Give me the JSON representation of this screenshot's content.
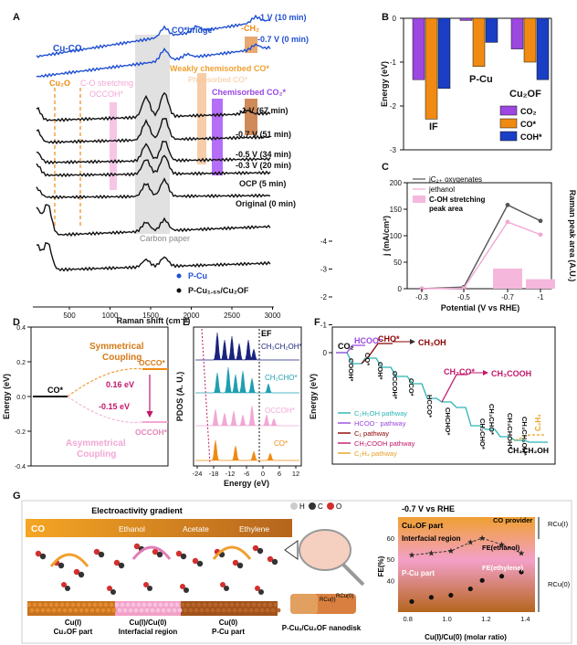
{
  "colors": {
    "blue": "#1f4fd1",
    "black": "#111111",
    "orange": "#f08a12",
    "pink": "#f2a7d4",
    "purple": "#9b47e0",
    "navy": "#1a237e",
    "teal": "#1f9fb0",
    "gray": "#bdbdbd",
    "brown": "#c27a3a",
    "gold": "#e8a020",
    "magenta": "#c2186b"
  },
  "panelA": {
    "letter": "A",
    "xlabel": "Raman shift (cm⁻¹)",
    "xticks": [
      "500",
      "1000",
      "1500",
      "2000",
      "2500",
      "3000"
    ],
    "annotations": {
      "cuco": "Cu-CO",
      "cobridge": "CO*bridge",
      "ch": "-CH₂",
      "cu2o": "Cu₂O",
      "costretch": "C-O stretching",
      "occoh": "OCCOH*",
      "weak": "Weakly chemisorbed CO*",
      "physi": "Physisorbed CO*",
      "chemi": "Chemisorbed CO₂*",
      "carbon": "Carbon paper"
    },
    "spectra_labels": [
      "-1 V (10 min)",
      "-0.7 V (0 min)",
      "-1 V (67 min)",
      "-0.7 V (51 min)",
      "-0.5 V (34 min)",
      "-0.3 V (20 min)",
      "OCP (5 min)",
      "Original (0 min)"
    ],
    "legend": [
      "P-Cu",
      "P-Cu₁.₆₅/Cu₂OF"
    ]
  },
  "panelB": {
    "letter": "B",
    "chart_data": {
      "type": "bar",
      "categories": [
        "IF",
        "P-Cu",
        "Cu₂OF"
      ],
      "ylabel": "Energy (eV)",
      "ylim": [
        -3,
        0
      ],
      "yticks": [
        "0",
        "-1",
        "-2",
        "-3"
      ],
      "series": [
        {
          "name": "CO₂",
          "values": [
            -1.4,
            -0.05,
            -0.7
          ]
        },
        {
          "name": "CO*",
          "values": [
            -2.3,
            -1.1,
            -1.0
          ]
        },
        {
          "name": "COH*",
          "values": [
            -1.6,
            -0.55,
            -1.4
          ]
        }
      ]
    }
  },
  "panelC": {
    "letter": "C",
    "chart_data": {
      "type": "line",
      "x": [
        "-0.3",
        "-0.5",
        "-0.7",
        "-1"
      ],
      "xlabel": "Potential (V vs RHE)",
      "ylabel": "j (mA/cm²)",
      "y2label": "Raman peak area (A.U.)",
      "ylim": [
        0,
        200
      ],
      "yticks": [
        "0",
        "50",
        "100",
        "150",
        "200"
      ],
      "series": [
        {
          "name": "jC2+ oxygenates",
          "values": [
            0,
            3,
            158,
            128
          ]
        },
        {
          "name": "jethanol",
          "values": [
            0,
            1,
            126,
            102
          ]
        },
        {
          "name": "C-OH stretching peak area",
          "values": [
            0,
            0,
            38,
            18
          ]
        }
      ],
      "legend": [
        "jC₂₊ oxygenates",
        "jethanol",
        "C-OH stretching",
        "peak area"
      ]
    }
  },
  "panelD": {
    "letter": "D",
    "ylabel": "Energy (eV)",
    "yticks": [
      "0.4",
      "0.2",
      "0.0",
      "-0.2",
      "-0.4"
    ],
    "labels": {
      "co": "CO*",
      "sym": "Symmetrical",
      "coupling": "Coupling",
      "occo": "OCCO*",
      "e1": "0.16 eV",
      "e2": "-0.15 eV",
      "occoh": "OCCOH*",
      "asym": "Asymmetrical",
      "coupling2": "Coupling"
    }
  },
  "panelE": {
    "letter": "E",
    "ylabel": "PDOS (A. U.)",
    "xlabel": "Energy (eV)",
    "xticks": [
      "-24",
      "-18",
      "-12",
      "-6",
      "0",
      "6",
      "12"
    ],
    "ef": "EF",
    "labels": [
      "CH₃CH₂OH*",
      "CH₂CHO*",
      "OCCOH*",
      "CO*"
    ]
  },
  "panelF": {
    "letter": "F",
    "ylabel": "Energy (eV)",
    "yticks": [
      "0",
      "-1",
      "-2",
      "-3",
      "-4"
    ],
    "labels": {
      "co2": "CO₂",
      "hcoo": "HCOO⁻",
      "cho": "CHO*",
      "ch3oh": "CH₃OH",
      "ch2co": "CH₂CO*",
      "ch3cooh": "CH₃COOH",
      "ch3ch2oh": "CH₃CH₂OH",
      "c2h4": "C₂H₄",
      "vert": [
        "COOH*",
        "CO*",
        "COH*",
        "OCCOH*",
        "CCO*",
        "HCCO*",
        "CHCHO*",
        "CH₂CHO*",
        "CH₃CHO*",
        "CH₃CHOH*",
        "CH₃CH₂OH*"
      ]
    },
    "legend": [
      "C₂H₅OH pathway",
      "HCOO⁻ pathway",
      "C₁ pathway",
      "CH₃COOH pathway",
      "C₂H₄ pathway"
    ]
  },
  "panelG": {
    "letter": "G",
    "gradient": "Electroactivity gradient",
    "products": [
      "CO",
      "Ethanol",
      "Acetate",
      "Ethylene"
    ],
    "atoms": [
      "H",
      "C",
      "O"
    ],
    "parts": [
      [
        "Cu(I)",
        "Cu₂OF part"
      ],
      [
        "Cu(I)/Cu(0)",
        "Interfacial region"
      ],
      [
        "Cu(0)",
        "P-Cu part"
      ]
    ],
    "nanodisk": "P-Cuₓ/Cu₂OF nanodisk",
    "rcu": [
      "RCu(I)",
      "RCu(0)"
    ],
    "inset": {
      "title": "-0.7 V vs RHE",
      "cu2o": "Cu₂OF part",
      "provider": "CO provider",
      "interfacial": "Interfacial region",
      "fe_eth": "FE(ethanol)",
      "pcu": "P-Cu part",
      "fe_ethylene": "FE(ethylene)",
      "ylabel": "FE(%)",
      "xlabel": "Cu(I)/Cu(0) (molar ratio)",
      "xticks": [
        "0.8",
        "1.0",
        "1.2",
        "1.4"
      ],
      "yticks": [
        "40",
        "50",
        "60"
      ],
      "rright": [
        "RCu(I)",
        "RCu(0)"
      ],
      "chart_data": {
        "type": "scatter",
        "series": [
          {
            "name": "FE(ethanol)",
            "x": [
              0.82,
              0.92,
              1.02,
              1.12,
              1.18,
              1.28,
              1.38
            ],
            "y": [
              52,
              53,
              54,
              58,
              60,
              57,
              53
            ]
          },
          {
            "name": "FE(ethylene)",
            "x": [
              0.82,
              0.92,
              1.02,
              1.12,
              1.18,
              1.28,
              1.38
            ],
            "y": [
              30,
              32,
              33,
              36,
              40,
              42,
              44
            ]
          }
        ]
      }
    }
  }
}
